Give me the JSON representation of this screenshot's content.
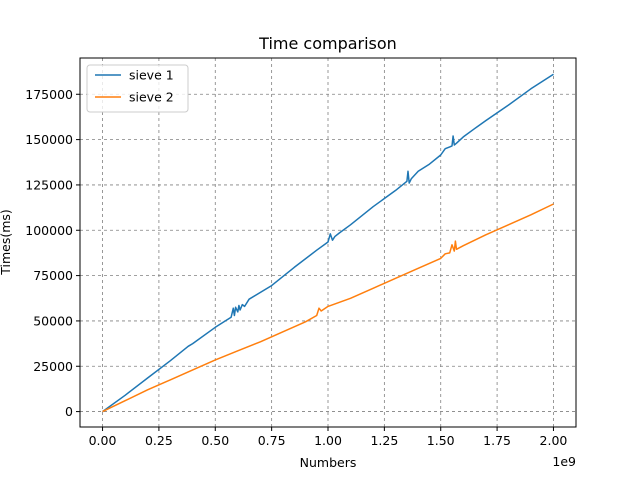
{
  "chart_data": {
    "type": "line",
    "title": "Time comparison",
    "xlabel": "Numbers",
    "ylabel": "Times(ms)",
    "x_offset_label": "1e9",
    "xlim": [
      -0.1,
      2.1
    ],
    "ylim": [
      -8500,
      195000
    ],
    "x_ticks": [
      0.0,
      0.25,
      0.5,
      0.75,
      1.0,
      1.25,
      1.5,
      1.75,
      2.0
    ],
    "x_tick_labels": [
      "0.00",
      "0.25",
      "0.50",
      "0.75",
      "1.00",
      "1.25",
      "1.50",
      "1.75",
      "2.00"
    ],
    "y_ticks": [
      0,
      25000,
      50000,
      75000,
      100000,
      125000,
      150000,
      175000
    ],
    "y_tick_labels": [
      "0",
      "25000",
      "50000",
      "75000",
      "100000",
      "125000",
      "150000",
      "175000"
    ],
    "grid": true,
    "legend_position": "top-left",
    "series": [
      {
        "name": "sieve 1",
        "color": "#1f77b4",
        "x": [
          0.0,
          0.1,
          0.2,
          0.3,
          0.38,
          0.4,
          0.5,
          0.57,
          0.58,
          0.585,
          0.59,
          0.6,
          0.605,
          0.61,
          0.62,
          0.63,
          0.65,
          0.75,
          0.85,
          0.95,
          1.0,
          1.01,
          1.02,
          1.03,
          1.05,
          1.1,
          1.2,
          1.3,
          1.35,
          1.355,
          1.36,
          1.37,
          1.4,
          1.45,
          1.5,
          1.52,
          1.54,
          1.55,
          1.555,
          1.56,
          1.57,
          1.6,
          1.65,
          1.7,
          1.8,
          1.9,
          2.0
        ],
        "y": [
          0,
          9000,
          18500,
          28000,
          36000,
          37500,
          46500,
          52000,
          57000,
          53000,
          57500,
          55000,
          58500,
          56000,
          59000,
          58000,
          62000,
          69500,
          79500,
          89000,
          93500,
          98000,
          94500,
          96500,
          98500,
          103000,
          113000,
          122000,
          127000,
          132500,
          126000,
          128500,
          132500,
          136500,
          141500,
          145000,
          146000,
          146500,
          152000,
          147000,
          148000,
          151500,
          156000,
          160500,
          169000,
          178000,
          186000
        ]
      },
      {
        "name": "sieve 2",
        "color": "#ff7f0e",
        "x": [
          0.0,
          0.1,
          0.2,
          0.3,
          0.4,
          0.5,
          0.6,
          0.7,
          0.8,
          0.9,
          0.95,
          0.96,
          0.97,
          1.0,
          1.1,
          1.2,
          1.3,
          1.4,
          1.5,
          1.52,
          1.54,
          1.55,
          1.56,
          1.565,
          1.57,
          1.6,
          1.7,
          1.8,
          1.9,
          2.0
        ],
        "y": [
          0,
          6000,
          12000,
          17500,
          23000,
          28500,
          33500,
          38500,
          44000,
          49500,
          53000,
          57000,
          55500,
          58000,
          62500,
          68000,
          73500,
          79000,
          84500,
          87000,
          87500,
          92000,
          88500,
          94000,
          89500,
          91500,
          97500,
          103000,
          108500,
          114500
        ]
      }
    ]
  }
}
